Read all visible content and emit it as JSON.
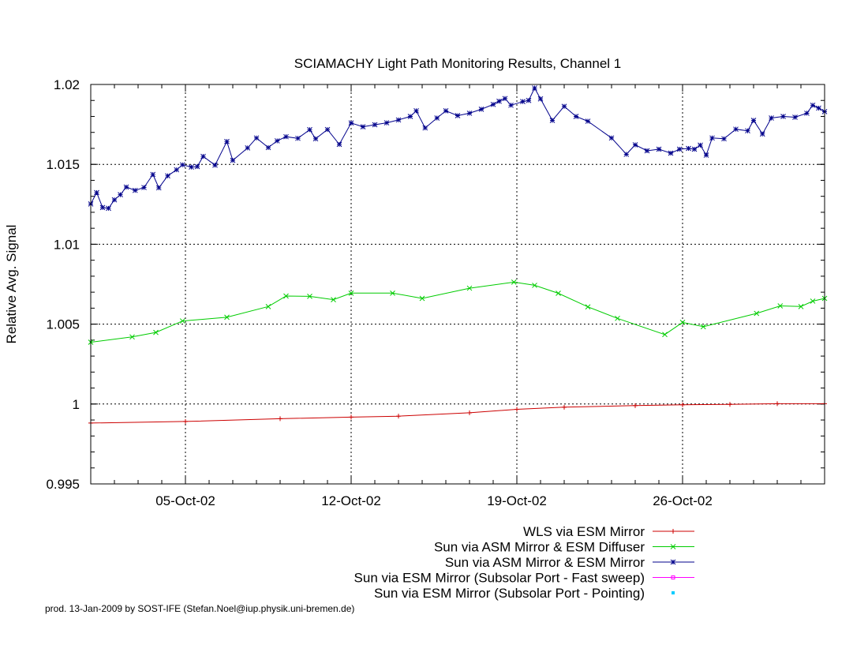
{
  "chart_data": {
    "type": "line",
    "title": "SCIAMACHY Light Path Monitoring Results, Channel 1",
    "ylabel": "Relative Avg. Signal",
    "xlabel": "",
    "x_domain": [
      "2002-10-01T00:00",
      "2002-11-01T00:00"
    ],
    "ylim": [
      0.995,
      1.02
    ],
    "y_ticks": [
      0.995,
      1,
      1.005,
      1.01,
      1.015,
      1.02
    ],
    "y_tick_labels": [
      "0.995",
      "1",
      "1.005",
      "1.01",
      "1.015",
      "1.02"
    ],
    "x_ticks": [
      "2002-10-05",
      "2002-10-12",
      "2002-10-19",
      "2002-10-26"
    ],
    "x_tick_labels": [
      "05-Oct-02",
      "12-Oct-02",
      "19-Oct-02",
      "26-Oct-02"
    ],
    "grid": true,
    "legend_position": "below-right",
    "series": [
      {
        "name": "WLS via ESM Mirror",
        "color": "#cc0000",
        "marker": "plus",
        "points": [
          [
            "2002-10-01T00:00",
            0.99881
          ],
          [
            "2002-10-05T00:00",
            0.99891
          ],
          [
            "2002-10-09T00:00",
            0.99908
          ],
          [
            "2002-10-12T00:00",
            0.99918
          ],
          [
            "2002-10-14T00:00",
            0.99924
          ],
          [
            "2002-10-17T00:00",
            0.99945
          ],
          [
            "2002-10-19T00:00",
            0.99967
          ],
          [
            "2002-10-21T00:00",
            0.9998
          ],
          [
            "2002-10-24T00:00",
            0.9999
          ],
          [
            "2002-10-26T00:00",
            0.99995
          ],
          [
            "2002-10-28T00:00",
            0.99998
          ],
          [
            "2002-10-30T00:00",
            1.00002
          ],
          [
            "2002-11-01T00:00",
            1.00002
          ]
        ]
      },
      {
        "name": "Sun via ASM Mirror & ESM Diffuser",
        "color": "#00cc00",
        "marker": "cross",
        "points": [
          [
            "2002-10-01T00:00",
            1.00387
          ],
          [
            "2002-10-02T18:00",
            1.0042
          ],
          [
            "2002-10-03T18:00",
            1.00448
          ],
          [
            "2002-10-04T21:00",
            1.0052
          ],
          [
            "2002-10-06T18:00",
            1.00543
          ],
          [
            "2002-10-08T12:00",
            1.0061
          ],
          [
            "2002-10-09T06:00",
            1.00676
          ],
          [
            "2002-10-10T06:00",
            1.00674
          ],
          [
            "2002-10-11T06:00",
            1.00653
          ],
          [
            "2002-10-12T00:00",
            1.00694
          ],
          [
            "2002-10-13T18:00",
            1.00694
          ],
          [
            "2002-10-15T00:00",
            1.00661
          ],
          [
            "2002-10-17T00:00",
            1.00725
          ],
          [
            "2002-10-18T21:00",
            1.00763
          ],
          [
            "2002-10-19T18:00",
            1.00743
          ],
          [
            "2002-10-20T18:00",
            1.00693
          ],
          [
            "2002-10-22T00:00",
            1.00608
          ],
          [
            "2002-10-23T06:00",
            1.00536
          ],
          [
            "2002-10-25T06:00",
            1.00435
          ],
          [
            "2002-10-26T00:00",
            1.00511
          ],
          [
            "2002-10-26T21:00",
            1.00484
          ],
          [
            "2002-10-29T03:00",
            1.00567
          ],
          [
            "2002-10-30T03:00",
            1.00614
          ],
          [
            "2002-10-31T00:00",
            1.0061
          ],
          [
            "2002-10-31T12:00",
            1.00644
          ],
          [
            "2002-11-01T00:00",
            1.00661
          ]
        ]
      },
      {
        "name": "Sun via ASM Mirror & ESM Mirror",
        "color": "#00008b",
        "marker": "star",
        "points": [
          [
            "2002-10-01T00:00",
            1.01252
          ],
          [
            "2002-10-01T06:00",
            1.01323
          ],
          [
            "2002-10-01T12:00",
            1.0123
          ],
          [
            "2002-10-01T18:00",
            1.01225
          ],
          [
            "2002-10-02T00:00",
            1.01278
          ],
          [
            "2002-10-02T06:00",
            1.0131
          ],
          [
            "2002-10-02T12:00",
            1.01358
          ],
          [
            "2002-10-02T21:00",
            1.01337
          ],
          [
            "2002-10-03T06:00",
            1.01355
          ],
          [
            "2002-10-03T15:00",
            1.01437
          ],
          [
            "2002-10-03T21:00",
            1.01353
          ],
          [
            "2002-10-04T06:00",
            1.01428
          ],
          [
            "2002-10-04T15:00",
            1.01466
          ],
          [
            "2002-10-04T21:00",
            1.01497
          ],
          [
            "2002-10-05T06:00",
            1.01483
          ],
          [
            "2002-10-05T12:00",
            1.01486
          ],
          [
            "2002-10-05T18:00",
            1.0155
          ],
          [
            "2002-10-06T06:00",
            1.01495
          ],
          [
            "2002-10-06T18:00",
            1.01643
          ],
          [
            "2002-10-07T00:00",
            1.01525
          ],
          [
            "2002-10-07T15:00",
            1.01603
          ],
          [
            "2002-10-08T00:00",
            1.01665
          ],
          [
            "2002-10-08T12:00",
            1.01605
          ],
          [
            "2002-10-08T21:00",
            1.01647
          ],
          [
            "2002-10-09T06:00",
            1.01673
          ],
          [
            "2002-10-09T18:00",
            1.01663
          ],
          [
            "2002-10-10T06:00",
            1.01717
          ],
          [
            "2002-10-10T12:00",
            1.0166
          ],
          [
            "2002-10-11T00:00",
            1.01718
          ],
          [
            "2002-10-11T12:00",
            1.01625
          ],
          [
            "2002-10-12T00:00",
            1.01759
          ],
          [
            "2002-10-12T12:00",
            1.01735
          ],
          [
            "2002-10-13T00:00",
            1.01748
          ],
          [
            "2002-10-13T12:00",
            1.0176
          ],
          [
            "2002-10-14T00:00",
            1.01778
          ],
          [
            "2002-10-14T12:00",
            1.018
          ],
          [
            "2002-10-14T18:00",
            1.01835
          ],
          [
            "2002-10-15T03:00",
            1.01728
          ],
          [
            "2002-10-15T15:00",
            1.0179
          ],
          [
            "2002-10-16T00:00",
            1.01835
          ],
          [
            "2002-10-16T12:00",
            1.01805
          ],
          [
            "2002-10-17T00:00",
            1.0182
          ],
          [
            "2002-10-17T12:00",
            1.01845
          ],
          [
            "2002-10-18T00:00",
            1.01875
          ],
          [
            "2002-10-18T06:00",
            1.01895
          ],
          [
            "2002-10-18T12:00",
            1.01912
          ],
          [
            "2002-10-18T18:00",
            1.0187
          ],
          [
            "2002-10-19T06:00",
            1.01893
          ],
          [
            "2002-10-19T12:00",
            1.019
          ],
          [
            "2002-10-19T18:00",
            1.01978
          ],
          [
            "2002-10-20T00:00",
            1.0191
          ],
          [
            "2002-10-20T12:00",
            1.01775
          ],
          [
            "2002-10-21T00:00",
            1.01863
          ],
          [
            "2002-10-21T12:00",
            1.018
          ],
          [
            "2002-10-22T00:00",
            1.0177
          ],
          [
            "2002-10-23T00:00",
            1.01665
          ],
          [
            "2002-10-23T15:00",
            1.01563
          ],
          [
            "2002-10-24T00:00",
            1.01622
          ],
          [
            "2002-10-24T12:00",
            1.01585
          ],
          [
            "2002-10-25T00:00",
            1.01595
          ],
          [
            "2002-10-25T12:00",
            1.0157
          ],
          [
            "2002-10-25T21:00",
            1.01595
          ],
          [
            "2002-10-26T06:00",
            1.016
          ],
          [
            "2002-10-26T12:00",
            1.01595
          ],
          [
            "2002-10-26T18:00",
            1.0162
          ],
          [
            "2002-10-27T00:00",
            1.01558
          ],
          [
            "2002-10-27T06:00",
            1.01665
          ],
          [
            "2002-10-27T18:00",
            1.0166
          ],
          [
            "2002-10-28T06:00",
            1.0172
          ],
          [
            "2002-10-28T18:00",
            1.0171
          ],
          [
            "2002-10-29T00:00",
            1.01775
          ],
          [
            "2002-10-29T09:00",
            1.0169
          ],
          [
            "2002-10-29T18:00",
            1.0179
          ],
          [
            "2002-10-30T06:00",
            1.018
          ],
          [
            "2002-10-30T18:00",
            1.01795
          ],
          [
            "2002-10-31T06:00",
            1.0182
          ],
          [
            "2002-10-31T12:00",
            1.0187
          ],
          [
            "2002-10-31T18:00",
            1.01852
          ],
          [
            "2002-11-01T00:00",
            1.0183
          ]
        ]
      },
      {
        "name": "Sun via ESM Mirror (Subsolar Port - Fast sweep)",
        "color": "#ff00ff",
        "marker": "box",
        "points": []
      },
      {
        "name": "Sun via ESM Mirror (Subsolar Port - Pointing)",
        "color": "#00ccff",
        "marker": "dot",
        "points": []
      }
    ]
  },
  "footer": {
    "text": "prod. 13-Jan-2009 by SOST-IFE (Stefan.Noel@iup.physik.uni-bremen.de)"
  }
}
